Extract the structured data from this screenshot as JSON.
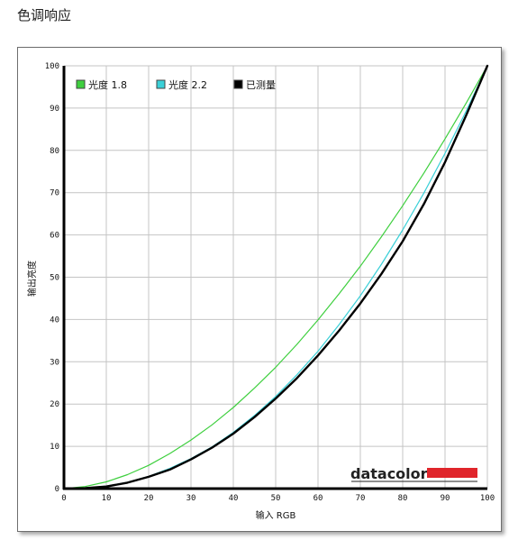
{
  "page": {
    "title": "色调响应"
  },
  "brand": {
    "name": "datacolor",
    "bar_color": "#e0252b"
  },
  "chart_data": {
    "type": "line",
    "xlabel": "输入 RGB",
    "ylabel": "输出亮度",
    "xlim": [
      0,
      100
    ],
    "ylim": [
      0,
      100
    ],
    "xticks": [
      "0",
      "10",
      "20",
      "30",
      "40",
      "50",
      "60",
      "70",
      "80",
      "90",
      "100"
    ],
    "yticks": [
      "0",
      "10",
      "20",
      "30",
      "40",
      "50",
      "60",
      "70",
      "80",
      "90",
      "100"
    ],
    "grid": true,
    "legend_position": "top-left",
    "x": [
      0,
      5,
      10,
      15,
      20,
      25,
      30,
      35,
      40,
      45,
      50,
      55,
      60,
      65,
      70,
      75,
      80,
      85,
      90,
      95,
      100
    ],
    "series": [
      {
        "name": "光度 1.8",
        "color": "#3ecf3e",
        "values": [
          0,
          0.5,
          1.6,
          3.3,
          5.5,
          8.3,
          11.5,
          15.1,
          19.2,
          23.8,
          28.7,
          34.1,
          39.9,
          46.1,
          52.6,
          59.6,
          66.9,
          74.6,
          82.7,
          91.2,
          100
        ]
      },
      {
        "name": "光度 2.2",
        "color": "#3ad0d8",
        "values": [
          0,
          0.1,
          0.6,
          1.5,
          2.9,
          4.8,
          7.1,
          9.9,
          13.3,
          17.3,
          21.8,
          26.9,
          32.5,
          38.8,
          45.6,
          53.1,
          61.2,
          69.9,
          79.3,
          89.3,
          100
        ]
      },
      {
        "name": "已测量",
        "color": "#000000",
        "values": [
          0,
          0.1,
          0.5,
          1.4,
          2.8,
          4.5,
          6.9,
          9.7,
          13.0,
          16.9,
          21.3,
          26.1,
          31.5,
          37.4,
          43.8,
          50.8,
          58.5,
          67.3,
          77.2,
          88.3,
          100
        ]
      }
    ]
  }
}
